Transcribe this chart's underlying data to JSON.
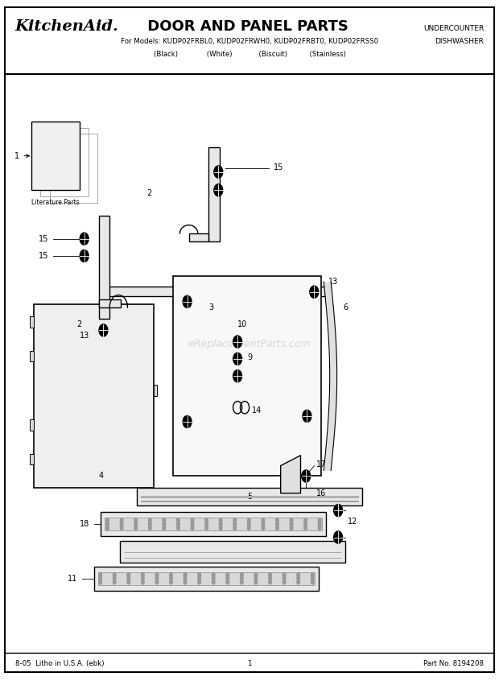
{
  "title_brand": "KitchenAid",
  "title_main": " DOOR AND PANEL PARTS",
  "subtitle": "For Models: KUDP02FRBL0, KUDP02FRWH0, KUDP02FRBT0, KUDP02FRSS0",
  "subtitle2": "(Black)             (White)            (Biscuit)          (Stainless)",
  "top_right_line1": "UNDERCOUNTER",
  "top_right_line2": "DISHWASHER",
  "footer_left": "8-05  Litho in U.S.A. (ebk)",
  "footer_center": "1",
  "footer_right": "Part No. 8194208",
  "watermark": "eReplacementParts.com",
  "bg_color": "#ffffff"
}
